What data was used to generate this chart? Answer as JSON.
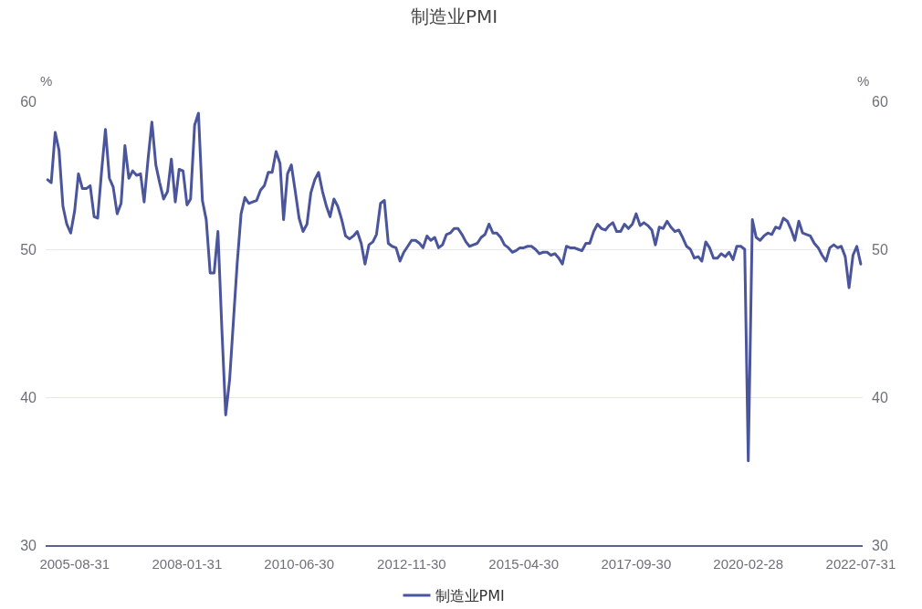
{
  "chart_data": {
    "type": "line",
    "title": "制造业PMI",
    "ylabel": "%",
    "y2label": "%",
    "x": [
      "2005-01-31",
      "2005-02-28",
      "2005-03-31",
      "2005-04-30",
      "2005-05-31",
      "2005-06-30",
      "2005-07-31",
      "2005-08-31",
      "2005-09-30",
      "2005-10-31",
      "2005-11-30",
      "2005-12-31",
      "2006-01-31",
      "2006-02-28",
      "2006-03-31",
      "2006-04-30",
      "2006-05-31",
      "2006-06-30",
      "2006-07-31",
      "2006-08-31",
      "2006-09-30",
      "2006-10-31",
      "2006-11-30",
      "2006-12-31",
      "2007-01-31",
      "2007-02-28",
      "2007-03-31",
      "2007-04-30",
      "2007-05-31",
      "2007-06-30",
      "2007-07-31",
      "2007-08-31",
      "2007-09-30",
      "2007-10-31",
      "2007-11-30",
      "2007-12-31",
      "2008-01-31",
      "2008-02-28",
      "2008-03-31",
      "2008-04-30",
      "2008-05-31",
      "2008-06-30",
      "2008-07-31",
      "2008-08-31",
      "2008-09-30",
      "2008-10-31",
      "2008-11-30",
      "2008-12-31",
      "2009-01-31",
      "2009-02-28",
      "2009-03-31",
      "2009-04-30",
      "2009-05-31",
      "2009-06-30",
      "2009-07-31",
      "2009-08-31",
      "2009-09-30",
      "2009-10-31",
      "2009-11-30",
      "2009-12-31",
      "2010-01-31",
      "2010-02-28",
      "2010-03-31",
      "2010-04-30",
      "2010-05-31",
      "2010-06-30",
      "2010-07-31",
      "2010-08-31",
      "2010-09-30",
      "2010-10-31",
      "2010-11-30",
      "2010-12-31",
      "2011-01-31",
      "2011-02-28",
      "2011-03-31",
      "2011-04-30",
      "2011-05-31",
      "2011-06-30",
      "2011-07-31",
      "2011-08-31",
      "2011-09-30",
      "2011-10-31",
      "2011-11-30",
      "2011-12-31",
      "2012-01-31",
      "2012-02-28",
      "2012-03-31",
      "2012-04-30",
      "2012-05-31",
      "2012-06-30",
      "2012-07-31",
      "2012-08-31",
      "2012-09-30",
      "2012-10-31",
      "2012-11-30",
      "2012-12-31",
      "2013-01-31",
      "2013-02-28",
      "2013-03-31",
      "2013-04-30",
      "2013-05-31",
      "2013-06-30",
      "2013-07-31",
      "2013-08-31",
      "2013-09-30",
      "2013-10-31",
      "2013-11-30",
      "2013-12-31",
      "2014-01-31",
      "2014-02-28",
      "2014-03-31",
      "2014-04-30",
      "2014-05-31",
      "2014-06-30",
      "2014-07-31",
      "2014-08-31",
      "2014-09-30",
      "2014-10-31",
      "2014-11-30",
      "2014-12-31",
      "2015-01-31",
      "2015-02-28",
      "2015-03-31",
      "2015-04-30",
      "2015-05-31",
      "2015-06-30",
      "2015-07-31",
      "2015-08-31",
      "2015-09-30",
      "2015-10-31",
      "2015-11-30",
      "2015-12-31",
      "2016-01-31",
      "2016-02-28",
      "2016-03-31",
      "2016-04-30",
      "2016-05-31",
      "2016-06-30",
      "2016-07-31",
      "2016-08-31",
      "2016-09-30",
      "2016-10-31",
      "2016-11-30",
      "2016-12-31",
      "2017-01-31",
      "2017-02-28",
      "2017-03-31",
      "2017-04-30",
      "2017-05-31",
      "2017-06-30",
      "2017-07-31",
      "2017-08-31",
      "2017-09-30",
      "2017-10-31",
      "2017-11-30",
      "2017-12-31",
      "2018-01-31",
      "2018-02-28",
      "2018-03-31",
      "2018-04-30",
      "2018-05-31",
      "2018-06-30",
      "2018-07-31",
      "2018-08-31",
      "2018-09-30",
      "2018-10-31",
      "2018-11-30",
      "2018-12-31",
      "2019-01-31",
      "2019-02-28",
      "2019-03-31",
      "2019-04-30",
      "2019-05-31",
      "2019-06-30",
      "2019-07-31",
      "2019-08-31",
      "2019-09-30",
      "2019-10-31",
      "2019-11-30",
      "2019-12-31",
      "2020-01-31",
      "2020-02-28",
      "2020-03-31",
      "2020-04-30",
      "2020-05-31",
      "2020-06-30",
      "2020-07-31",
      "2020-08-31",
      "2020-09-30",
      "2020-10-31",
      "2020-11-30",
      "2020-12-31",
      "2021-01-31",
      "2021-02-28",
      "2021-03-31",
      "2021-04-30",
      "2021-05-31",
      "2021-06-30",
      "2021-07-31",
      "2021-08-31",
      "2021-09-30",
      "2021-10-31",
      "2021-11-30",
      "2021-12-31",
      "2022-01-31",
      "2022-02-28",
      "2022-03-31",
      "2022-04-30",
      "2022-05-31",
      "2022-06-30",
      "2022-07-31"
    ],
    "series": [
      {
        "name": "制造业PMI",
        "color": "#4b559c",
        "values": [
          54.7,
          54.5,
          57.9,
          56.7,
          52.9,
          51.7,
          51.1,
          52.6,
          55.1,
          54.1,
          54.1,
          54.3,
          52.2,
          52.1,
          55.3,
          58.1,
          54.8,
          54.2,
          52.4,
          53.1,
          57.0,
          54.8,
          55.3,
          55.0,
          55.1,
          53.2,
          56.1,
          58.6,
          55.7,
          54.5,
          53.4,
          53.9,
          56.1,
          53.2,
          55.4,
          55.3,
          53.0,
          53.4,
          58.4,
          59.2,
          53.3,
          52.0,
          48.4,
          48.4,
          51.2,
          44.6,
          38.8,
          41.2,
          45.3,
          49.0,
          52.4,
          53.5,
          53.1,
          53.2,
          53.3,
          54.0,
          54.3,
          55.2,
          55.2,
          56.6,
          55.8,
          52.0,
          55.1,
          55.7,
          53.9,
          52.1,
          51.2,
          51.7,
          53.8,
          54.7,
          55.2,
          53.9,
          52.9,
          52.2,
          53.4,
          52.9,
          52.0,
          50.9,
          50.7,
          50.9,
          51.2,
          50.4,
          49.0,
          50.3,
          50.5,
          51.0,
          53.1,
          53.3,
          50.4,
          50.2,
          50.1,
          49.2,
          49.8,
          50.2,
          50.6,
          50.6,
          50.4,
          50.1,
          50.9,
          50.6,
          50.8,
          50.1,
          50.3,
          51.0,
          51.1,
          51.4,
          51.4,
          51.0,
          50.5,
          50.2,
          50.3,
          50.4,
          50.8,
          51.0,
          51.7,
          51.1,
          51.1,
          50.8,
          50.3,
          50.1,
          49.8,
          49.9,
          50.1,
          50.1,
          50.2,
          50.2,
          50.0,
          49.7,
          49.8,
          49.8,
          49.6,
          49.7,
          49.4,
          49.0,
          50.2,
          50.1,
          50.1,
          50.0,
          49.9,
          50.4,
          50.4,
          51.2,
          51.7,
          51.4,
          51.3,
          51.6,
          51.8,
          51.2,
          51.2,
          51.7,
          51.4,
          51.7,
          52.4,
          51.6,
          51.8,
          51.6,
          51.3,
          50.3,
          51.5,
          51.4,
          51.9,
          51.5,
          51.2,
          51.3,
          50.8,
          50.2,
          50.0,
          49.4,
          49.5,
          49.2,
          50.5,
          50.1,
          49.4,
          49.4,
          49.7,
          49.5,
          49.8,
          49.3,
          50.2,
          50.2,
          50.0,
          35.7,
          52.0,
          50.8,
          50.6,
          50.9,
          51.1,
          51.0,
          51.5,
          51.4,
          52.1,
          51.9,
          51.3,
          50.6,
          51.9,
          51.1,
          51.0,
          50.9,
          50.4,
          50.1,
          49.6,
          49.2,
          50.1,
          50.3,
          50.1,
          50.2,
          49.5,
          47.4,
          49.6,
          50.2,
          49.0
        ]
      }
    ],
    "xlim": [
      "2005-01-15",
      "2022-08-15"
    ],
    "xticks": [
      "2005-08-31",
      "2008-01-31",
      "2010-06-30",
      "2012-11-30",
      "2015-04-30",
      "2017-09-30",
      "2020-02-28",
      "2022-07-31"
    ],
    "ylim": [
      30,
      60
    ],
    "yticks": [
      30,
      40,
      50,
      60
    ],
    "y2lim": [
      30,
      60
    ],
    "y2ticks": [
      30,
      40,
      50,
      60
    ],
    "grid": "y",
    "legend": "bottom"
  }
}
